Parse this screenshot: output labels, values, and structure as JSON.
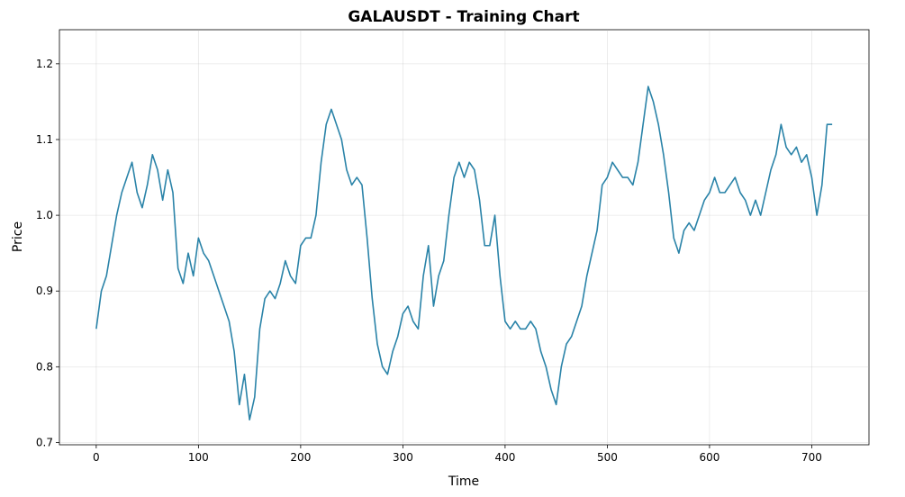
{
  "chart_data": {
    "type": "line",
    "title": "GALAUSDT - Training Chart",
    "x_label": "Time",
    "y_label": "Price",
    "color": "#2a83a8",
    "grid": true,
    "xlim": [
      -36,
      756
    ],
    "ylim": [
      0.697,
      1.245
    ],
    "xticks": [
      0,
      100,
      200,
      300,
      400,
      500,
      600,
      700
    ],
    "yticks": [
      0.7,
      0.8,
      0.9,
      {
        "value": 1,
        "label": "1.0"
      },
      1.1,
      1.2
    ],
    "x": [
      0,
      5,
      10,
      15,
      20,
      25,
      30,
      35,
      40,
      45,
      50,
      55,
      60,
      65,
      70,
      75,
      80,
      85,
      90,
      95,
      100,
      105,
      110,
      115,
      120,
      125,
      130,
      135,
      140,
      145,
      150,
      155,
      160,
      165,
      170,
      175,
      180,
      185,
      190,
      195,
      200,
      205,
      210,
      215,
      220,
      225,
      230,
      235,
      240,
      245,
      250,
      255,
      260,
      265,
      270,
      275,
      280,
      285,
      290,
      295,
      300,
      305,
      310,
      315,
      320,
      325,
      330,
      335,
      340,
      345,
      350,
      355,
      360,
      365,
      370,
      375,
      380,
      385,
      390,
      395,
      400,
      405,
      410,
      415,
      420,
      425,
      430,
      435,
      440,
      445,
      450,
      455,
      460,
      465,
      470,
      475,
      480,
      485,
      490,
      495,
      500,
      505,
      510,
      515,
      520,
      525,
      530,
      535,
      540,
      545,
      550,
      555,
      560,
      565,
      570,
      575,
      580,
      585,
      590,
      595,
      600,
      605,
      610,
      615,
      620,
      625,
      630,
      635,
      640,
      645,
      650,
      655,
      660,
      665,
      670,
      675,
      680,
      685,
      690,
      695,
      700,
      705,
      710,
      715,
      720
    ],
    "values": [
      0.85,
      0.9,
      0.92,
      0.96,
      1.0,
      1.03,
      1.05,
      1.07,
      1.03,
      1.01,
      1.04,
      1.08,
      1.06,
      1.02,
      1.06,
      1.03,
      0.93,
      0.91,
      0.95,
      0.92,
      0.97,
      0.95,
      0.94,
      0.92,
      0.9,
      0.88,
      0.86,
      0.82,
      0.75,
      0.79,
      0.73,
      0.76,
      0.85,
      0.89,
      0.9,
      0.89,
      0.91,
      0.94,
      0.92,
      0.91,
      0.96,
      0.97,
      0.97,
      1.0,
      1.07,
      1.12,
      1.14,
      1.12,
      1.1,
      1.06,
      1.04,
      1.05,
      1.04,
      0.97,
      0.89,
      0.83,
      0.8,
      0.79,
      0.82,
      0.84,
      0.87,
      0.88,
      0.86,
      0.85,
      0.92,
      0.96,
      0.88,
      0.92,
      0.94,
      1.0,
      1.05,
      1.07,
      1.05,
      1.07,
      1.06,
      1.02,
      0.96,
      0.96,
      1.0,
      0.92,
      0.86,
      0.85,
      0.86,
      0.85,
      0.85,
      0.86,
      0.85,
      0.82,
      0.8,
      0.77,
      0.75,
      0.8,
      0.83,
      0.84,
      0.86,
      0.88,
      0.92,
      0.95,
      0.98,
      1.04,
      1.05,
      1.07,
      1.06,
      1.05,
      1.05,
      1.04,
      1.07,
      1.12,
      1.17,
      1.15,
      1.12,
      1.08,
      1.03,
      0.97,
      0.95,
      0.98,
      0.99,
      0.98,
      1.0,
      1.02,
      1.03,
      1.05,
      1.03,
      1.03,
      1.04,
      1.05,
      1.03,
      1.02,
      1.0,
      1.02,
      1.0,
      1.03,
      1.06,
      1.08,
      1.12,
      1.09,
      1.08,
      1.09,
      1.07,
      1.08,
      1.05,
      1.0,
      1.04,
      1.12,
      1.12
    ]
  }
}
